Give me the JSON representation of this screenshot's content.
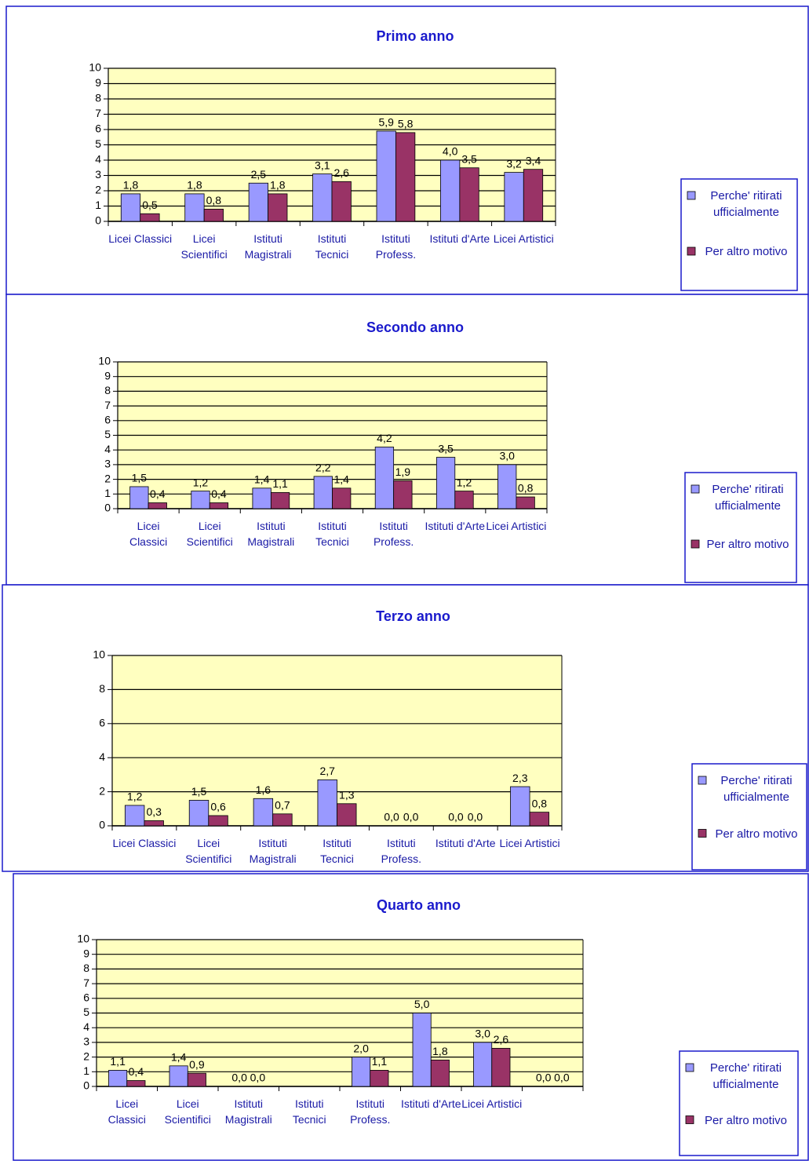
{
  "chart_data": [
    {
      "type": "bar",
      "title": "Primo anno",
      "categories": [
        "Licei Classici",
        "Licei Scientifici",
        "Istituti Magistrali",
        "Istituti Tecnici",
        "Istituti Profess.",
        "Istituti d'Arte",
        "Licei Artistici"
      ],
      "series": [
        {
          "name": "Perche' ritirati ufficialmente",
          "color": "#9999ff",
          "values": [
            1.8,
            1.8,
            2.5,
            3.1,
            5.9,
            4.0,
            3.2
          ],
          "value_labels": [
            "1,8",
            "1,8",
            "2,5",
            "3,1",
            "5,9",
            "4,0",
            "3,2"
          ]
        },
        {
          "name": "Per altro motivo",
          "color": "#993366",
          "values": [
            0.5,
            0.8,
            1.8,
            2.6,
            5.8,
            3.5,
            3.4
          ],
          "value_labels": [
            "0,5",
            "0,8",
            "1,8",
            "2,6",
            "5,8",
            "3,5",
            "3,4"
          ]
        }
      ],
      "ylim": [
        0,
        10
      ],
      "yticks": [
        0,
        1,
        2,
        3,
        4,
        5,
        6,
        7,
        8,
        9,
        10
      ],
      "grid": true,
      "legend": "right"
    },
    {
      "type": "bar",
      "title": "Secondo anno",
      "categories": [
        "Licei Classici",
        "Licei Scientifici",
        "Istituti Magistrali",
        "Istituti Tecnici",
        "Istituti Profess.",
        "Istituti d'Arte",
        "Licei Artistici"
      ],
      "series": [
        {
          "name": "Perche' ritirati ufficialmente",
          "color": "#9999ff",
          "values": [
            1.5,
            1.2,
            1.4,
            2.2,
            4.2,
            3.5,
            3.0
          ],
          "value_labels": [
            "1,5",
            "1,2",
            "1,4",
            "2,2",
            "4,2",
            "3,5",
            "3,0"
          ]
        },
        {
          "name": "Per altro motivo",
          "color": "#993366",
          "values": [
            0.4,
            0.4,
            1.1,
            1.4,
            1.9,
            1.2,
            0.8
          ],
          "value_labels": [
            "0,4",
            "0,4",
            "1,1",
            "1,4",
            "1,9",
            "1,2",
            "0,8"
          ]
        }
      ],
      "ylim": [
        0,
        10
      ],
      "yticks": [
        0,
        1,
        2,
        3,
        4,
        5,
        6,
        7,
        8,
        9,
        10
      ],
      "grid": true,
      "legend": "right"
    },
    {
      "type": "bar",
      "title": "Terzo anno",
      "categories": [
        "Licei Classici",
        "Licei Scientifici",
        "Istituti Magistrali",
        "Istituti Tecnici",
        "Istituti Profess.",
        "Istituti d'Arte",
        "Licei Artistici"
      ],
      "series": [
        {
          "name": "Perche' ritirati ufficialmente",
          "color": "#9999ff",
          "values": [
            1.2,
            1.5,
            1.6,
            2.7,
            0.0,
            0.0,
            2.3
          ],
          "value_labels": [
            "1,2",
            "1,5",
            "1,6",
            "2,7",
            "0,0",
            "0,0",
            "2,3"
          ]
        },
        {
          "name": "Per altro motivo",
          "color": "#993366",
          "values": [
            0.3,
            0.6,
            0.7,
            1.3,
            0.0,
            0.0,
            0.8
          ],
          "value_labels": [
            "0,3",
            "0,6",
            "0,7",
            "1,3",
            "0,0",
            "0,0",
            "0,8"
          ]
        }
      ],
      "ylim": [
        0,
        10
      ],
      "yticks": [
        0,
        2,
        4,
        6,
        8,
        10
      ],
      "grid": true,
      "legend": "right"
    },
    {
      "type": "bar",
      "title": "Quarto anno",
      "categories": [
        "Licei Classici",
        "Licei Scientifici",
        "Istituti Magistrali",
        "Istituti Tecnici",
        "Istituti Profess.",
        "Istituti d'Arte",
        "Licei Artistici",
        null
      ],
      "series": [
        {
          "name": "Perche' ritirati ufficialmente",
          "color": "#9999ff",
          "values": [
            1.1,
            1.4,
            0.0,
            null,
            2.0,
            5.0,
            3.0,
            0.0
          ],
          "value_labels": [
            "1,1",
            "1,4",
            "0,0",
            null,
            "2,0",
            "5,0",
            "3,0",
            "0,0"
          ]
        },
        {
          "name": "Per altro motivo",
          "color": "#993366",
          "values": [
            0.4,
            0.9,
            0.0,
            null,
            1.1,
            1.8,
            2.6,
            0.0
          ],
          "value_labels": [
            "0,4",
            "0,9",
            "0,0",
            null,
            "1,1",
            "1,8",
            "2,6",
            "0,0"
          ]
        }
      ],
      "ylim": [
        0,
        10
      ],
      "yticks": [
        0,
        1,
        2,
        3,
        4,
        5,
        6,
        7,
        8,
        9,
        10
      ],
      "grid": true,
      "legend": "right"
    }
  ]
}
